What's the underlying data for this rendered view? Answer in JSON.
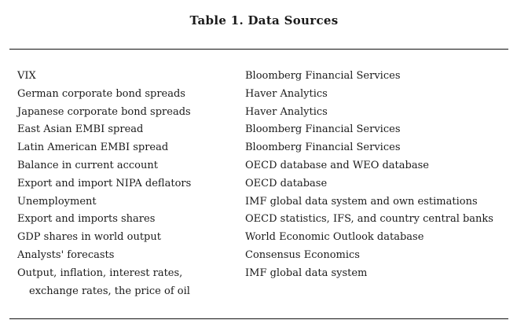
{
  "title": "Table 1. Data Sources",
  "rows": [
    {
      "variable": "VIX",
      "source": "Bloomberg Financial Services"
    },
    {
      "variable": "German corporate bond spreads",
      "source": "Haver Analytics"
    },
    {
      "variable": "Japanese corporate bond spreads",
      "source": "Haver Analytics"
    },
    {
      "variable": "East Asian EMBI spread",
      "source": "Bloomberg Financial Services"
    },
    {
      "variable": "Latin American EMBI spread",
      "source": "Bloomberg Financial Services"
    },
    {
      "variable": "Balance in current account",
      "source": "OECD database and WEO database"
    },
    {
      "variable": "Export and import NIPA deflators",
      "source": "OECD database"
    },
    {
      "variable": "Unemployment",
      "source": "IMF global data system and own estimations"
    },
    {
      "variable": "Export and imports shares",
      "source": "OECD statistics, IFS, and country central banks"
    },
    {
      "variable": "GDP shares in world output",
      "source": "World Economic Outlook database"
    },
    {
      "variable": "Analysts' forecasts",
      "source": "Consensus Economics"
    },
    {
      "variable": "Output, inflation, interest rates,",
      "source": "IMF global data system"
    },
    {
      "variable": "exchange rates, the price of oil",
      "source": ""
    }
  ]
}
